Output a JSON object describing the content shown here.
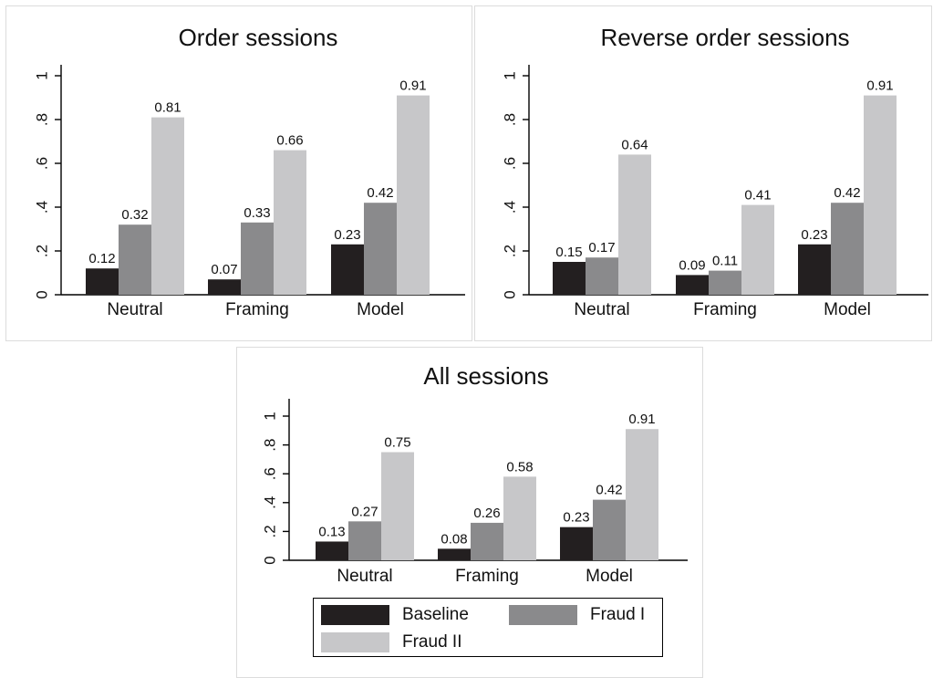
{
  "colors": {
    "Baseline": "#231f20",
    "Fraud I": "#8a8a8c",
    "Fraud II": "#c7c7c9"
  },
  "legend": {
    "items": [
      "Baseline",
      "Fraud I",
      "Fraud II"
    ]
  },
  "chart_data": [
    {
      "type": "bar",
      "title": "Order sessions",
      "categories": [
        "Neutral",
        "Framing",
        "Model"
      ],
      "series": [
        {
          "name": "Baseline",
          "values": [
            0.12,
            0.07,
            0.23
          ],
          "labels": [
            "0.12",
            "0.07",
            "0.23"
          ]
        },
        {
          "name": "Fraud I",
          "values": [
            0.32,
            0.33,
            0.42
          ],
          "labels": [
            "0.32",
            "0.33",
            "0.42"
          ]
        },
        {
          "name": "Fraud II",
          "values": [
            0.81,
            0.66,
            0.91
          ],
          "labels": [
            "0.81",
            "0.66",
            "0.91"
          ]
        }
      ],
      "ylim": [
        0,
        1
      ],
      "yticks": [
        0,
        0.2,
        0.4,
        0.6,
        0.8,
        1
      ],
      "ytick_labels": [
        "0",
        ".2",
        ".4",
        ".6",
        ".8",
        "1"
      ],
      "grid": false
    },
    {
      "type": "bar",
      "title": "Reverse order sessions",
      "categories": [
        "Neutral",
        "Framing",
        "Model"
      ],
      "series": [
        {
          "name": "Baseline",
          "values": [
            0.15,
            0.09,
            0.23
          ],
          "labels": [
            "0.15",
            "0.09",
            "0.23"
          ]
        },
        {
          "name": "Fraud I",
          "values": [
            0.17,
            0.11,
            0.42
          ],
          "labels": [
            "0.17",
            "0.11",
            "0.42"
          ]
        },
        {
          "name": "Fraud II",
          "values": [
            0.64,
            0.41,
            0.91
          ],
          "labels": [
            "0.64",
            "0.41",
            "0.91"
          ]
        }
      ],
      "ylim": [
        0,
        1
      ],
      "yticks": [
        0,
        0.2,
        0.4,
        0.6,
        0.8,
        1
      ],
      "ytick_labels": [
        "0",
        ".2",
        ".4",
        ".6",
        ".8",
        "1"
      ],
      "grid": false
    },
    {
      "type": "bar",
      "title": "All sessions",
      "categories": [
        "Neutral",
        "Framing",
        "Model"
      ],
      "series": [
        {
          "name": "Baseline",
          "values": [
            0.13,
            0.08,
            0.23
          ],
          "labels": [
            "0.13",
            "0.08",
            "0.23"
          ]
        },
        {
          "name": "Fraud I",
          "values": [
            0.27,
            0.26,
            0.42
          ],
          "labels": [
            "0.27",
            "0.26",
            "0.42"
          ]
        },
        {
          "name": "Fraud II",
          "values": [
            0.75,
            0.58,
            0.91
          ],
          "labels": [
            "0.75",
            "0.58",
            "0.91"
          ]
        }
      ],
      "ylim": [
        0,
        1
      ],
      "yticks": [
        0,
        0.2,
        0.4,
        0.6,
        0.8,
        1
      ],
      "ytick_labels": [
        "0",
        ".2",
        ".4",
        ".6",
        ".8",
        "1"
      ],
      "grid": false
    }
  ]
}
